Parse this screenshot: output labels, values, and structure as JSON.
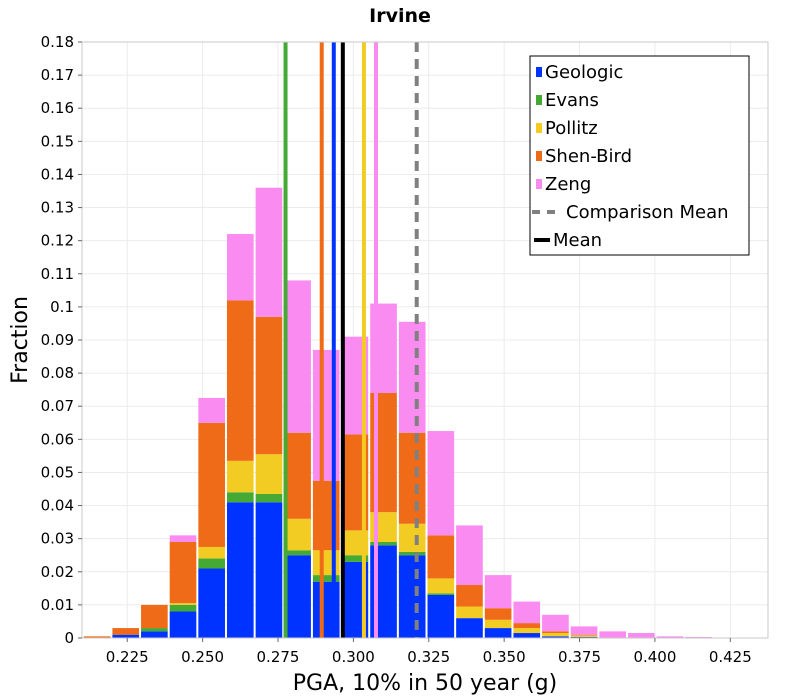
{
  "chart_data": {
    "type": "bar",
    "stacked": true,
    "title": "Irvine",
    "xlabel": "PGA, 10% in 50 year (g)",
    "ylabel": "Fraction",
    "xlim": [
      0.21,
      0.4375
    ],
    "ylim": [
      0,
      0.18
    ],
    "x_ticks": [
      "0.225",
      "0.250",
      "0.275",
      "0.300",
      "0.325",
      "0.350",
      "0.375",
      "0.400",
      "0.425"
    ],
    "y_ticks": [
      "0",
      "0.01",
      "0.02",
      "0.03",
      "0.04",
      "0.05",
      "0.06",
      "0.07",
      "0.08",
      "0.09",
      "0.1",
      "0.11",
      "0.12",
      "0.13",
      "0.14",
      "0.15",
      "0.16",
      "0.17",
      "0.18"
    ],
    "grid": true,
    "bin_width": 0.0095,
    "legend_position": "top-right",
    "x": [
      0.215,
      0.2245,
      0.234,
      0.2435,
      0.253,
      0.2625,
      0.272,
      0.2815,
      0.291,
      0.3005,
      0.31,
      0.3195,
      0.329,
      0.3385,
      0.348,
      0.3575,
      0.367,
      0.3765,
      0.386,
      0.3955,
      0.405,
      0.4145,
      0.424,
      0.4335
    ],
    "series": [
      {
        "name": "Geologic",
        "color": "#0033ff",
        "values": [
          0,
          0.001,
          0.002,
          0.008,
          0.021,
          0.041,
          0.041,
          0.025,
          0.017,
          0.023,
          0.028,
          0.025,
          0.013,
          0.006,
          0.003,
          0.0015,
          0.0005,
          0.0003,
          0,
          0,
          0,
          0,
          0,
          0
        ]
      },
      {
        "name": "Evans",
        "color": "#44aa33",
        "values": [
          0,
          0,
          0.001,
          0.002,
          0.003,
          0.003,
          0.0025,
          0.0015,
          0.002,
          0.002,
          0.001,
          0.001,
          0.0005,
          0,
          0,
          0,
          0,
          0,
          0,
          0,
          0,
          0,
          0,
          0
        ]
      },
      {
        "name": "Pollitz",
        "color": "#f2cc22",
        "values": [
          0,
          0,
          0,
          0.0005,
          0.0035,
          0.0095,
          0.012,
          0.0095,
          0.0075,
          0.0075,
          0.009,
          0.0085,
          0.0045,
          0.0035,
          0.0025,
          0.0015,
          0.001,
          0.0005,
          0,
          0,
          0,
          0,
          0,
          0
        ]
      },
      {
        "name": "Shen-Bird",
        "color": "#f06b18",
        "values": [
          0.0005,
          0.002,
          0.007,
          0.0185,
          0.0375,
          0.0485,
          0.0415,
          0.026,
          0.021,
          0.029,
          0.036,
          0.0275,
          0.013,
          0.0065,
          0.0035,
          0.0015,
          0.0005,
          0.0002,
          0,
          0,
          0,
          0,
          0,
          0
        ]
      },
      {
        "name": "Zeng",
        "color": "#f98bf1",
        "values": [
          0,
          0,
          0,
          0.002,
          0.0075,
          0.02,
          0.039,
          0.046,
          0.0395,
          0.0295,
          0.027,
          0.0335,
          0.0315,
          0.018,
          0.01,
          0.0065,
          0.005,
          0.0025,
          0.002,
          0.0015,
          0.0005,
          0.0003,
          0,
          0
        ]
      }
    ],
    "lines": [
      {
        "name": "Geologic",
        "color": "#0033ff",
        "x": 0.2935,
        "dashed": false
      },
      {
        "name": "Evans",
        "color": "#44aa33",
        "x": 0.2775,
        "dashed": false
      },
      {
        "name": "Pollitz",
        "color": "#f2cc22",
        "x": 0.3035,
        "dashed": false
      },
      {
        "name": "Shen-Bird",
        "color": "#f06b18",
        "x": 0.2895,
        "dashed": false
      },
      {
        "name": "Zeng",
        "color": "#f98bf1",
        "x": 0.3075,
        "dashed": false
      },
      {
        "name": "Comparison Mean",
        "color": "#808080",
        "x": 0.321,
        "dashed": true
      },
      {
        "name": "Mean",
        "color": "#000000",
        "x": 0.2965,
        "dashed": false
      }
    ],
    "legend": [
      {
        "label": "Geologic",
        "color": "#0033ff",
        "kind": "patch"
      },
      {
        "label": "Evans",
        "color": "#44aa33",
        "kind": "patch"
      },
      {
        "label": "Pollitz",
        "color": "#f2cc22",
        "kind": "patch"
      },
      {
        "label": "Shen-Bird",
        "color": "#f06b18",
        "kind": "patch"
      },
      {
        "label": "Zeng",
        "color": "#f98bf1",
        "kind": "patch"
      },
      {
        "label": "Comparison Mean",
        "color": "#808080",
        "kind": "dashed-line"
      },
      {
        "label": "Mean",
        "color": "#000000",
        "kind": "line"
      }
    ]
  }
}
